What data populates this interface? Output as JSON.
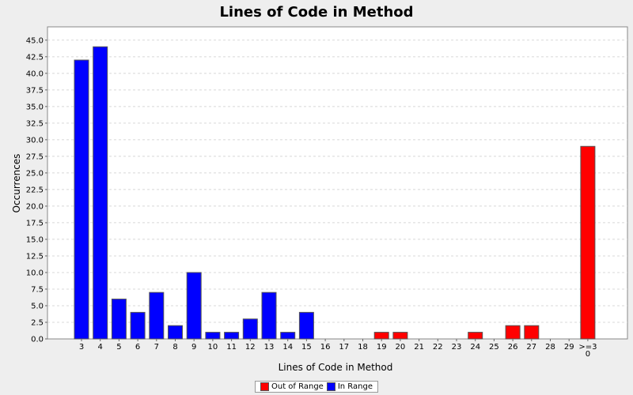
{
  "chart_data": {
    "type": "bar",
    "title": "Lines of Code in Method",
    "xlabel": "Lines of Code in Method",
    "ylabel": "Occurrences",
    "ylim": [
      0,
      47
    ],
    "yticks": [
      "0.0",
      "2.5",
      "5.0",
      "7.5",
      "10.0",
      "12.5",
      "15.0",
      "17.5",
      "20.0",
      "22.5",
      "25.0",
      "27.5",
      "30.0",
      "32.5",
      "35.0",
      "37.5",
      "40.0",
      "42.5",
      "45.0"
    ],
    "categories": [
      "3",
      "4",
      "5",
      "6",
      "7",
      "8",
      "9",
      "10",
      "11",
      "12",
      "13",
      "14",
      "15",
      "16",
      "17",
      "18",
      "19",
      "20",
      "21",
      "22",
      "23",
      "24",
      "25",
      "26",
      "27",
      "28",
      "29",
      ">=30"
    ],
    "category_display": [
      "3",
      "4",
      "5",
      "6",
      "7",
      "8",
      "9",
      "10",
      "11",
      "12",
      "13",
      "14",
      "15",
      "16",
      "17",
      "18",
      "19",
      "20",
      "21",
      "22",
      "23",
      "24",
      "25",
      "26",
      "27",
      "28",
      "29",
      ">=3\n0"
    ],
    "series": [
      {
        "name": "Out of Range",
        "color": "#ff0000",
        "values": [
          0,
          0,
          0,
          0,
          0,
          0,
          0,
          0,
          0,
          0,
          0,
          0,
          0,
          0,
          0,
          0,
          1,
          1,
          0,
          0,
          0,
          1,
          0,
          2,
          2,
          0,
          0,
          29
        ]
      },
      {
        "name": "In Range",
        "color": "#0000ff",
        "values": [
          42,
          44,
          6,
          4,
          7,
          2,
          10,
          1,
          1,
          3,
          7,
          1,
          4,
          0,
          0,
          0,
          0,
          0,
          0,
          0,
          0,
          0,
          0,
          0,
          0,
          0,
          0,
          0
        ]
      }
    ],
    "grid": true,
    "legend_position": "bottom-center"
  }
}
